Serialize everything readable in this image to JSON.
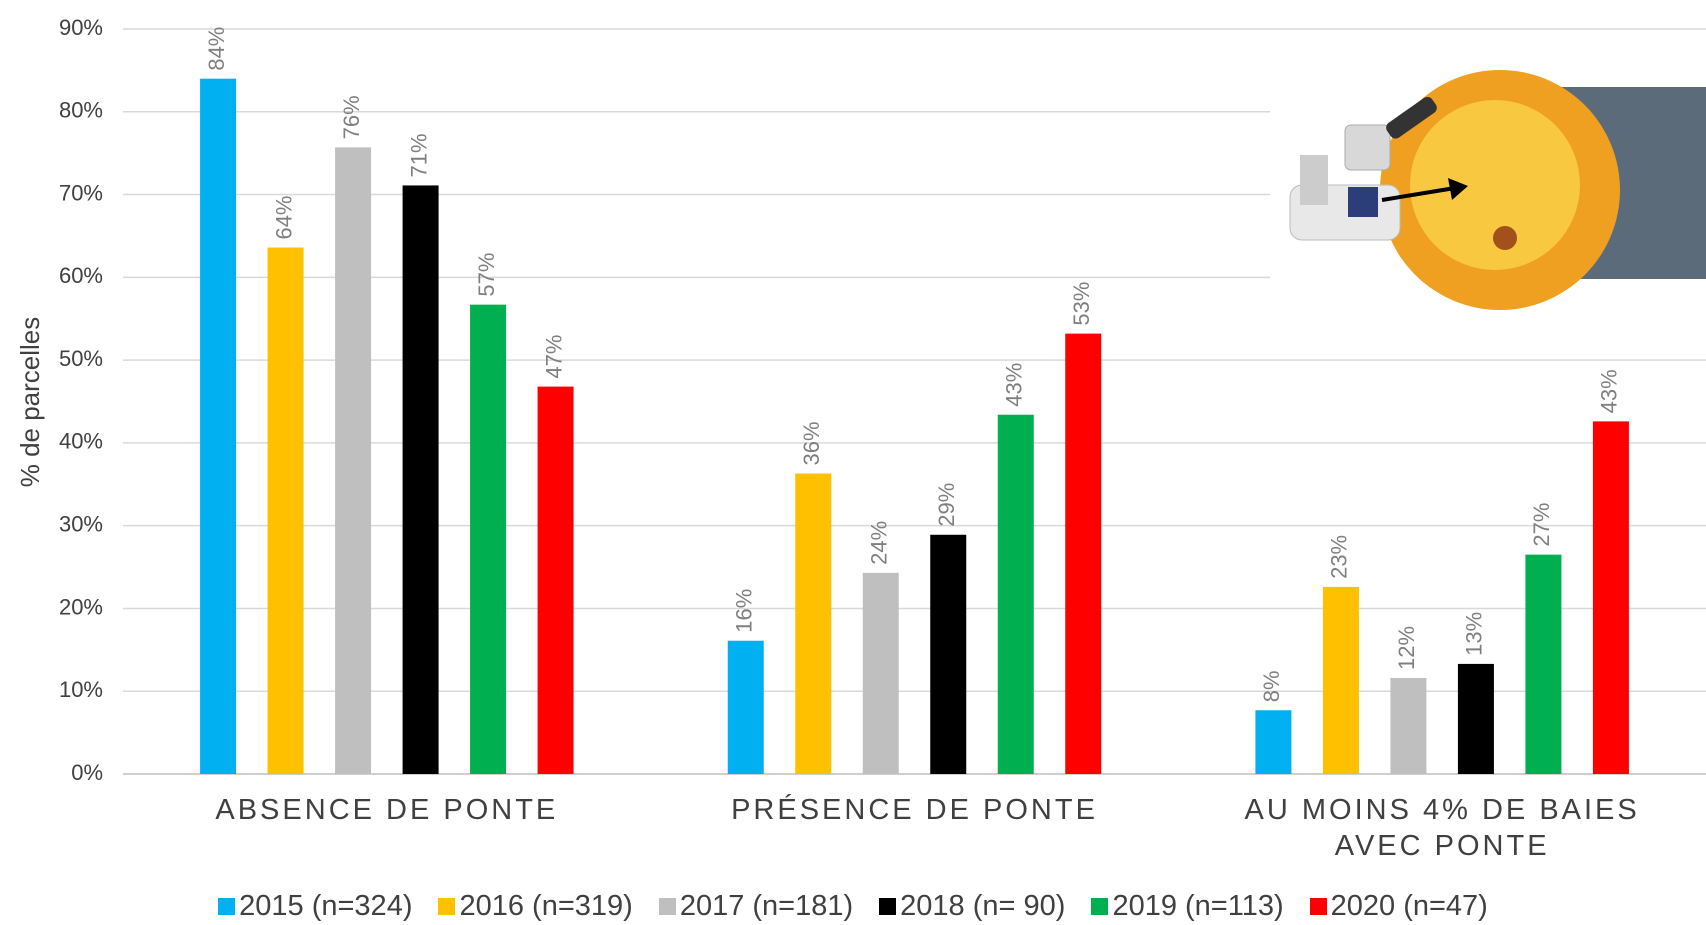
{
  "chart_data": {
    "type": "bar",
    "y_label": "% de parcelles",
    "categories": [
      "ABSENCE DE PONTE",
      "PRÉSENCE DE PONTE",
      "AU MOINS 4% DE BAIES AVEC PONTE"
    ],
    "series": [
      {
        "name": "2015 (n=324)",
        "color": "#00b0f0",
        "values": [
          84,
          16.1,
          7.7
        ],
        "value_labels": [
          "84%",
          "16%",
          "8%"
        ]
      },
      {
        "name": "2016 (n=319)",
        "color": "#ffc000",
        "values": [
          63.6,
          36.3,
          22.6
        ],
        "value_labels": [
          "64%",
          "36%",
          "23%"
        ]
      },
      {
        "name": "2017 (n=181)",
        "color": "#bfbfbf",
        "values": [
          75.7,
          24.3,
          11.6
        ],
        "value_labels": [
          "76%",
          "24%",
          "12%"
        ]
      },
      {
        "name": "2018 (n= 90)",
        "color": "#000000",
        "values": [
          71.1,
          28.9,
          13.3
        ],
        "value_labels": [
          "71%",
          "29%",
          "13%"
        ]
      },
      {
        "name": "2019 (n=113)",
        "color": "#00b050",
        "values": [
          56.7,
          43.4,
          26.5
        ],
        "value_labels": [
          "57%",
          "43%",
          "27%"
        ]
      },
      {
        "name": "2020 (n=47)",
        "color": "#ff0000",
        "values": [
          46.8,
          53.2,
          42.6
        ],
        "value_labels": [
          "47%",
          "53%",
          "43%"
        ]
      }
    ],
    "ylim": [
      0,
      90
    ],
    "yticks": [
      {
        "value": 0,
        "label": "0%"
      },
      {
        "value": 10,
        "label": "10%"
      },
      {
        "value": 20,
        "label": "20%"
      },
      {
        "value": 30,
        "label": "30%"
      },
      {
        "value": 40,
        "label": "40%"
      },
      {
        "value": 50,
        "label": "50%"
      },
      {
        "value": 60,
        "label": "60%"
      },
      {
        "value": 70,
        "label": "70%"
      },
      {
        "value": 80,
        "label": "80%"
      },
      {
        "value": 90,
        "label": "90%"
      }
    ],
    "grid": true
  }
}
